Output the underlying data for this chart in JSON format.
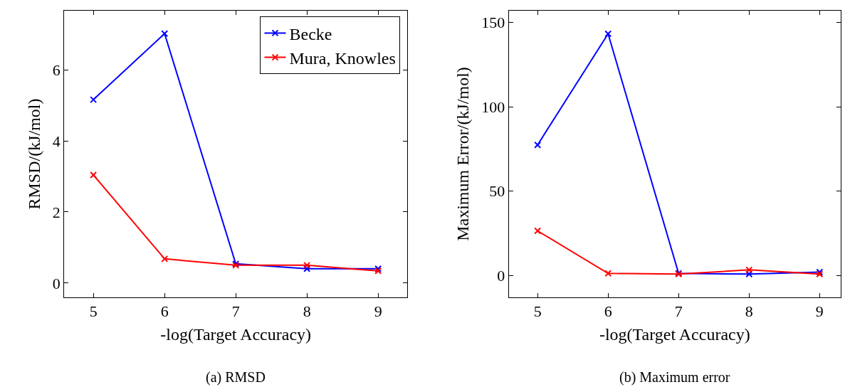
{
  "chart_data": [
    {
      "type": "line",
      "xlabel": "-log(Target Accuracy)",
      "ylabel": "RMSD/(kJ/mol)",
      "x": [
        5,
        6,
        7,
        8,
        9
      ],
      "xlim": [
        4.59,
        9.41
      ],
      "xticks": [
        5,
        6,
        7,
        8,
        9
      ],
      "ylim": [
        -0.4,
        7.66
      ],
      "yticks": [
        0,
        2,
        4,
        6
      ],
      "marker": "cross",
      "legend": "top right",
      "annotations": [
        "(a) RMSD"
      ],
      "series": [
        {
          "name": "Becke",
          "color": "#0000ff",
          "values": [
            5.16,
            7.02,
            0.54,
            0.4,
            0.4
          ]
        },
        {
          "name": "Mura, Knowles",
          "color": "#ff0000",
          "values": [
            3.04,
            0.68,
            0.5,
            0.5,
            0.34
          ]
        }
      ]
    },
    {
      "type": "line",
      "xlabel": "-log(Target Accuracy)",
      "ylabel": "Maximum Error/(kJ/mol)",
      "x": [
        5,
        6,
        7,
        8,
        9
      ],
      "xlim": [
        4.59,
        9.3
      ],
      "xticks": [
        5,
        6,
        7,
        8,
        9
      ],
      "ylim": [
        -12.8,
        156.8
      ],
      "yticks": [
        0,
        50,
        100,
        150
      ],
      "marker": "cross",
      "legend": false,
      "annotations": [
        "(b) Maximum error"
      ],
      "series": [
        {
          "color": "#0000ff",
          "values": [
            77.4,
            143.2,
            1.3,
            0.9,
            2.1
          ]
        },
        {
          "color": "#ff0000",
          "values": [
            26.5,
            1.3,
            0.9,
            3.4,
            0.9
          ]
        }
      ]
    }
  ]
}
